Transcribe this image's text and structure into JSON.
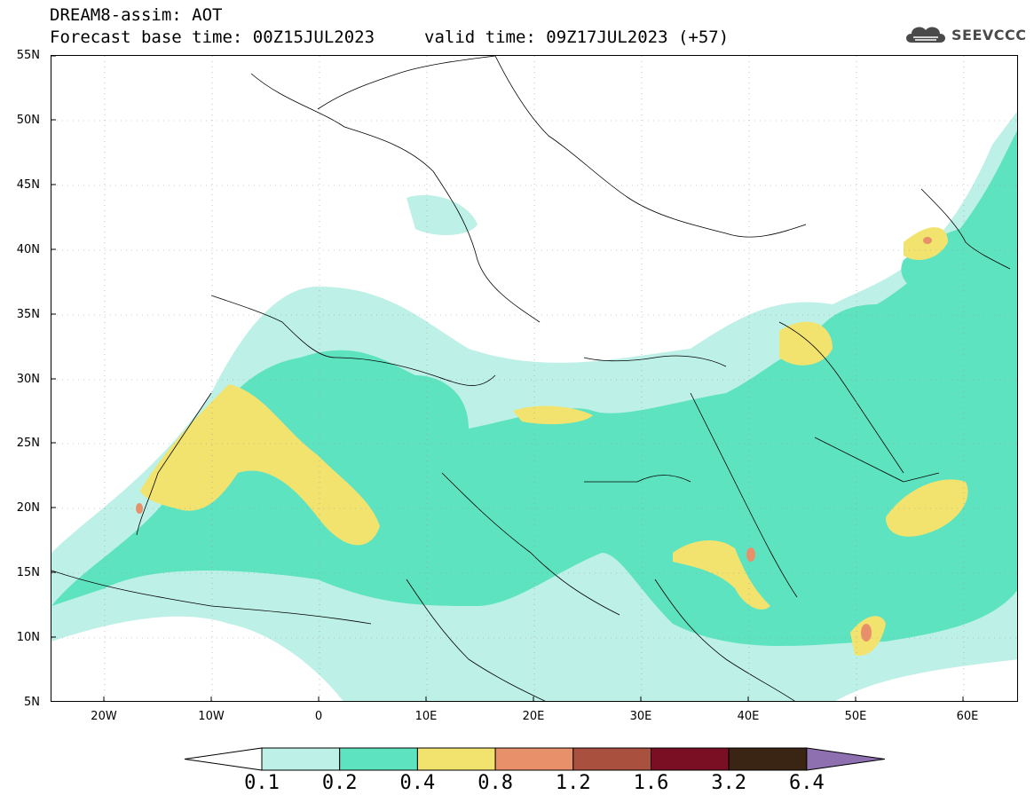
{
  "header": {
    "title": "DREAM8-assim: AOT",
    "base_time": "Forecast base time: 00Z15JUL2023",
    "valid_time": "valid time: 09Z17JUL2023 (+57)"
  },
  "logo": {
    "text": "SEEVCCC",
    "icon": "cloud-icon"
  },
  "map": {
    "lat_ticks": [
      "55N",
      "50N",
      "45N",
      "40N",
      "35N",
      "30N",
      "25N",
      "20N",
      "15N",
      "10N",
      "5N"
    ],
    "lon_ticks": [
      "20W",
      "10W",
      "0",
      "10E",
      "20E",
      "30E",
      "40E",
      "50E",
      "60E"
    ],
    "extent": {
      "lon": [
        -25,
        65
      ],
      "lat": [
        5,
        55
      ]
    }
  },
  "colorbar": {
    "labels": [
      "0.1",
      "0.2",
      "0.4",
      "0.8",
      "1.2",
      "1.6",
      "3.2",
      "6.4"
    ],
    "colors": [
      "#ffffff",
      "#bdf0e6",
      "#5ee3c0",
      "#f2e36f",
      "#e8906a",
      "#a9503e",
      "#7a0f24",
      "#3a2414",
      "#8e6fb0"
    ]
  }
}
